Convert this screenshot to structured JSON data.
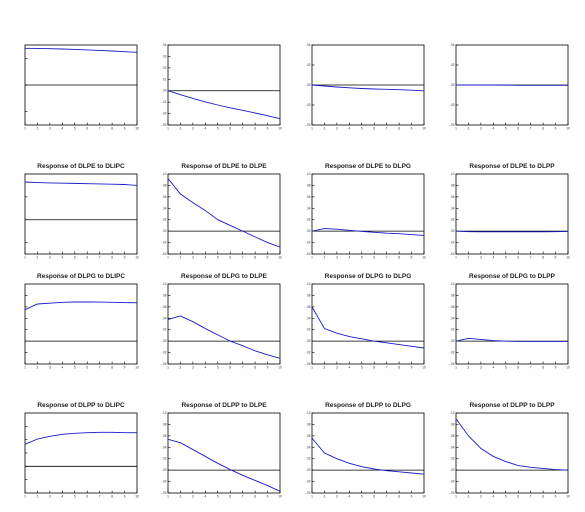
{
  "chart_data": [
    {
      "type": "line",
      "title": "",
      "x": [
        1,
        2,
        3,
        4,
        5,
        6,
        7,
        8,
        9,
        10
      ],
      "ylim": [
        -0.03,
        0.03
      ],
      "yticks": [
        -0.02,
        0.0,
        0.02
      ],
      "ytick_labels": [
        "",
        "",
        ""
      ],
      "xtick_labels": [
        "1",
        "2",
        "3",
        "4",
        "5",
        "6",
        "7",
        "8",
        "9",
        "10"
      ],
      "series": [
        {
          "values": [
            0.0275,
            0.0274,
            0.0272,
            0.027,
            0.0267,
            0.0263,
            0.0259,
            0.0255,
            0.025,
            0.0245
          ]
        }
      ]
    },
    {
      "type": "line",
      "title": "",
      "x": [
        1,
        2,
        3,
        4,
        5,
        6,
        7,
        8,
        9,
        10
      ],
      "ylim": [
        -0.03,
        0.04
      ],
      "yticks": [
        -0.03,
        -0.02,
        -0.01,
        0.0,
        0.01,
        0.02,
        0.03,
        0.04
      ],
      "ytick_labels": [
        "-.03",
        "-.02",
        "-.01",
        ".00",
        ".01",
        ".02",
        ".03",
        ".04"
      ],
      "xtick_labels": [
        "1",
        "2",
        "3",
        "4",
        "5",
        "6",
        "7",
        "8",
        "9",
        "10"
      ],
      "series": [
        {
          "values": [
            0.0,
            -0.0035,
            -0.0068,
            -0.0098,
            -0.0125,
            -0.015,
            -0.0172,
            -0.0195,
            -0.0218,
            -0.0245
          ]
        }
      ]
    },
    {
      "type": "line",
      "title": "",
      "x": [
        1,
        2,
        3,
        4,
        5,
        6,
        7,
        8,
        9,
        10
      ],
      "ylim": [
        -0.04,
        0.04
      ],
      "yticks": [
        -0.04,
        -0.02,
        0.0,
        0.02,
        0.04
      ],
      "ytick_labels": [
        "-.04",
        "-.02",
        ".00",
        ".02",
        ".04"
      ],
      "xtick_labels": [
        "1",
        "2",
        "3",
        "4",
        "5",
        "6",
        "7",
        "8",
        "9",
        "10"
      ],
      "series": [
        {
          "values": [
            0.0,
            -0.001,
            -0.002,
            -0.0028,
            -0.0035,
            -0.004,
            -0.0043,
            -0.0047,
            -0.0052,
            -0.0058
          ]
        }
      ]
    },
    {
      "type": "line",
      "title": "",
      "x": [
        1,
        2,
        3,
        4,
        5,
        6,
        7,
        8,
        9,
        10
      ],
      "ylim": [
        -0.04,
        0.04
      ],
      "yticks": [
        -0.04,
        -0.02,
        0.0,
        0.02,
        0.04
      ],
      "ytick_labels": [
        "-.04",
        "-.02",
        ".00",
        ".02",
        ".04"
      ],
      "xtick_labels": [
        "1",
        "2",
        "3",
        "4",
        "5",
        "6",
        "7",
        "8",
        "9",
        "10"
      ],
      "series": [
        {
          "values": [
            0.0,
            0.0,
            0.0,
            0.0,
            -0.0002,
            -0.0003,
            -0.0003,
            -0.0003,
            -0.0003,
            -0.0003
          ]
        }
      ]
    },
    {
      "type": "line",
      "title": "Response of DLPE to DLIPC",
      "x": [
        1,
        2,
        3,
        4,
        5,
        6,
        7,
        8,
        9,
        10
      ],
      "ylim": [
        -0.03,
        0.04
      ],
      "yticks": [
        -0.02,
        0.0,
        0.02
      ],
      "ytick_labels": [
        "",
        "",
        ""
      ],
      "xtick_labels": [
        "1",
        "2",
        "3",
        "4",
        "5",
        "6",
        "7",
        "8",
        "9",
        "10"
      ],
      "series": [
        {
          "values": [
            0.033,
            0.0325,
            0.0322,
            0.032,
            0.0318,
            0.0315,
            0.0313,
            0.0311,
            0.0308,
            0.03
          ]
        }
      ]
    },
    {
      "type": "line",
      "title": "Response of DLPE to DLPE",
      "x": [
        1,
        2,
        3,
        4,
        5,
        6,
        7,
        8,
        9,
        10
      ],
      "ylim": [
        -0.04,
        0.1
      ],
      "yticks": [
        -0.04,
        -0.02,
        0.0,
        0.02,
        0.04,
        0.06,
        0.08,
        0.1
      ],
      "ytick_labels": [
        "-.04",
        "-.02",
        ".00",
        ".02",
        ".04",
        ".06",
        ".08",
        ".10"
      ],
      "xtick_labels": [
        "1",
        "2",
        "3",
        "4",
        "5",
        "6",
        "7",
        "8",
        "9",
        "10"
      ],
      "series": [
        {
          "values": [
            0.092,
            0.065,
            0.05,
            0.036,
            0.02,
            0.01,
            0.0,
            -0.01,
            -0.02,
            -0.028
          ]
        }
      ]
    },
    {
      "type": "line",
      "title": "Response of DLPE to DLPG",
      "x": [
        1,
        2,
        3,
        4,
        5,
        6,
        7,
        8,
        9,
        10
      ],
      "ylim": [
        -0.04,
        0.1
      ],
      "yticks": [
        -0.04,
        -0.02,
        0.0,
        0.02,
        0.04,
        0.06,
        0.08,
        0.1
      ],
      "ytick_labels": [
        "-.04",
        "-.02",
        ".00",
        ".02",
        ".04",
        ".06",
        ".08",
        ".10"
      ],
      "xtick_labels": [
        "1",
        "2",
        "3",
        "4",
        "5",
        "6",
        "7",
        "8",
        "9",
        "10"
      ],
      "series": [
        {
          "values": [
            0.0,
            0.0045,
            0.0035,
            0.0015,
            -0.0005,
            -0.002,
            -0.0035,
            -0.0045,
            -0.006,
            -0.0075
          ]
        }
      ]
    },
    {
      "type": "line",
      "title": "Response of DLPE to DLPP",
      "x": [
        1,
        2,
        3,
        4,
        5,
        6,
        7,
        8,
        9,
        10
      ],
      "ylim": [
        -0.04,
        0.1
      ],
      "yticks": [
        -0.04,
        -0.02,
        0.0,
        0.02,
        0.04,
        0.06,
        0.08,
        0.1
      ],
      "ytick_labels": [
        "-.04",
        "-.02",
        ".00",
        ".02",
        ".04",
        ".06",
        ".08",
        ".10"
      ],
      "xtick_labels": [
        "1",
        "2",
        "3",
        "4",
        "5",
        "6",
        "7",
        "8",
        "9",
        "10"
      ],
      "series": [
        {
          "values": [
            0.0,
            -0.001,
            -0.0012,
            -0.0012,
            -0.0012,
            -0.0012,
            -0.0012,
            -0.0012,
            -0.001,
            -0.0005
          ]
        }
      ]
    },
    {
      "type": "line",
      "title": "Response of DLPG to DLIPC",
      "x": [
        1,
        2,
        3,
        4,
        5,
        6,
        7,
        8,
        9,
        10
      ],
      "ylim": [
        -0.04,
        0.1
      ],
      "yticks": [
        -0.02,
        0.0,
        0.02,
        0.04,
        0.06,
        0.08
      ],
      "ytick_labels": [
        "",
        "",
        "",
        "",
        "",
        ""
      ],
      "xtick_labels": [
        "1",
        "2",
        "3",
        "4",
        "5",
        "6",
        "7",
        "8",
        "9",
        "10"
      ],
      "series": [
        {
          "values": [
            0.055,
            0.065,
            0.0665,
            0.068,
            0.0685,
            0.0685,
            0.0683,
            0.068,
            0.0675,
            0.067
          ]
        }
      ]
    },
    {
      "type": "line",
      "title": "Response of DLPG to DLPE",
      "x": [
        1,
        2,
        3,
        4,
        5,
        6,
        7,
        8,
        9,
        10
      ],
      "ylim": [
        -0.04,
        0.1
      ],
      "yticks": [
        -0.04,
        -0.02,
        0.0,
        0.02,
        0.04,
        0.06,
        0.08,
        0.1
      ],
      "ytick_labels": [
        "-.04",
        "-.02",
        ".00",
        ".02",
        ".04",
        ".06",
        ".08",
        ".10"
      ],
      "xtick_labels": [
        "1",
        "2",
        "3",
        "4",
        "5",
        "6",
        "7",
        "8",
        "9",
        "10"
      ],
      "series": [
        {
          "values": [
            0.038,
            0.044,
            0.034,
            0.022,
            0.011,
            0.0,
            -0.008,
            -0.017,
            -0.024,
            -0.03
          ]
        }
      ]
    },
    {
      "type": "line",
      "title": "Response of DLPG to DLPG",
      "x": [
        1,
        2,
        3,
        4,
        5,
        6,
        7,
        8,
        9,
        10
      ],
      "ylim": [
        -0.04,
        0.1
      ],
      "yticks": [
        -0.04,
        -0.02,
        0.0,
        0.02,
        0.04,
        0.06,
        0.08,
        0.1
      ],
      "ytick_labels": [
        "-.04",
        "-.02",
        ".00",
        ".02",
        ".04",
        ".06",
        ".08",
        ".10"
      ],
      "xtick_labels": [
        "1",
        "2",
        "3",
        "4",
        "5",
        "6",
        "7",
        "8",
        "9",
        "10"
      ],
      "series": [
        {
          "values": [
            0.06,
            0.022,
            0.014,
            0.008,
            0.004,
            0.0,
            -0.003,
            -0.006,
            -0.009,
            -0.012
          ]
        }
      ]
    },
    {
      "type": "line",
      "title": "Response of DLPG to DLPP",
      "x": [
        1,
        2,
        3,
        4,
        5,
        6,
        7,
        8,
        9,
        10
      ],
      "ylim": [
        -0.04,
        0.1
      ],
      "yticks": [
        -0.04,
        -0.02,
        0.0,
        0.02,
        0.04,
        0.06,
        0.08,
        0.1
      ],
      "ytick_labels": [
        "-.04",
        "-.02",
        ".00",
        ".02",
        ".04",
        ".06",
        ".08",
        ".10"
      ],
      "xtick_labels": [
        "1",
        "2",
        "3",
        "4",
        "5",
        "6",
        "7",
        "8",
        "9",
        "10"
      ],
      "series": [
        {
          "values": [
            0.0,
            0.005,
            0.003,
            0.001,
            0.0,
            -0.0005,
            -0.0005,
            -0.0005,
            -0.0005,
            -0.0005
          ]
        }
      ]
    },
    {
      "type": "line",
      "title": "Response of DLPP to DLIPC",
      "x": [
        1,
        2,
        3,
        4,
        5,
        6,
        7,
        8,
        9,
        10
      ],
      "ylim": [
        -0.04,
        0.08
      ],
      "yticks": [
        -0.02,
        0.0,
        0.02,
        0.04,
        0.06
      ],
      "ytick_labels": [
        "",
        "",
        "",
        "",
        ""
      ],
      "xtick_labels": [
        "1",
        "2",
        "3",
        "4",
        "5",
        "6",
        "7",
        "8",
        "9",
        "10"
      ],
      "series": [
        {
          "values": [
            0.033,
            0.041,
            0.045,
            0.048,
            0.0495,
            0.0505,
            0.051,
            0.051,
            0.0505,
            0.0505
          ]
        }
      ]
    },
    {
      "type": "line",
      "title": "Response of DLPP to DLPE",
      "x": [
        1,
        2,
        3,
        4,
        5,
        6,
        7,
        8,
        9,
        10
      ],
      "ylim": [
        -0.04,
        0.1
      ],
      "yticks": [
        -0.04,
        -0.02,
        0.0,
        0.02,
        0.04,
        0.06,
        0.08,
        0.1
      ],
      "ytick_labels": [
        "-.04",
        "-.02",
        ".00",
        ".02",
        ".04",
        ".06",
        ".08",
        ".10"
      ],
      "xtick_labels": [
        "1",
        "2",
        "3",
        "4",
        "5",
        "6",
        "7",
        "8",
        "9",
        "10"
      ],
      "series": [
        {
          "values": [
            0.054,
            0.048,
            0.036,
            0.024,
            0.012,
            0.001,
            -0.009,
            -0.018,
            -0.027,
            -0.037
          ]
        }
      ]
    },
    {
      "type": "line",
      "title": "Response of DLPP to DLPG",
      "x": [
        1,
        2,
        3,
        4,
        5,
        6,
        7,
        8,
        9,
        10
      ],
      "ylim": [
        -0.04,
        0.1
      ],
      "yticks": [
        -0.04,
        -0.02,
        0.0,
        0.02,
        0.04,
        0.06,
        0.08,
        0.1
      ],
      "ytick_labels": [
        "-.04",
        "-.02",
        ".00",
        ".02",
        ".04",
        ".06",
        ".08",
        ".10"
      ],
      "xtick_labels": [
        "1",
        "2",
        "3",
        "4",
        "5",
        "6",
        "7",
        "8",
        "9",
        "10"
      ],
      "series": [
        {
          "values": [
            0.056,
            0.03,
            0.02,
            0.012,
            0.006,
            0.002,
            -0.001,
            -0.003,
            -0.005,
            -0.007
          ]
        }
      ]
    },
    {
      "type": "line",
      "title": "Response of DLPP to DLPP",
      "x": [
        1,
        2,
        3,
        4,
        5,
        6,
        7,
        8,
        9,
        10
      ],
      "ylim": [
        -0.04,
        0.1
      ],
      "yticks": [
        -0.04,
        -0.02,
        0.0,
        0.02,
        0.04,
        0.06,
        0.08,
        0.1
      ],
      "ytick_labels": [
        "-.04",
        "-.02",
        ".00",
        ".02",
        ".04",
        ".06",
        ".08",
        ".10"
      ],
      "xtick_labels": [
        "1",
        "2",
        "3",
        "4",
        "5",
        "6",
        "7",
        "8",
        "9",
        "10"
      ],
      "series": [
        {
          "values": [
            0.09,
            0.06,
            0.038,
            0.024,
            0.015,
            0.008,
            0.005,
            0.003,
            0.001,
            0.0
          ]
        }
      ]
    }
  ],
  "colors": {
    "line": "#1a1acc",
    "axis": "#000000",
    "zero_line": "#000000"
  }
}
